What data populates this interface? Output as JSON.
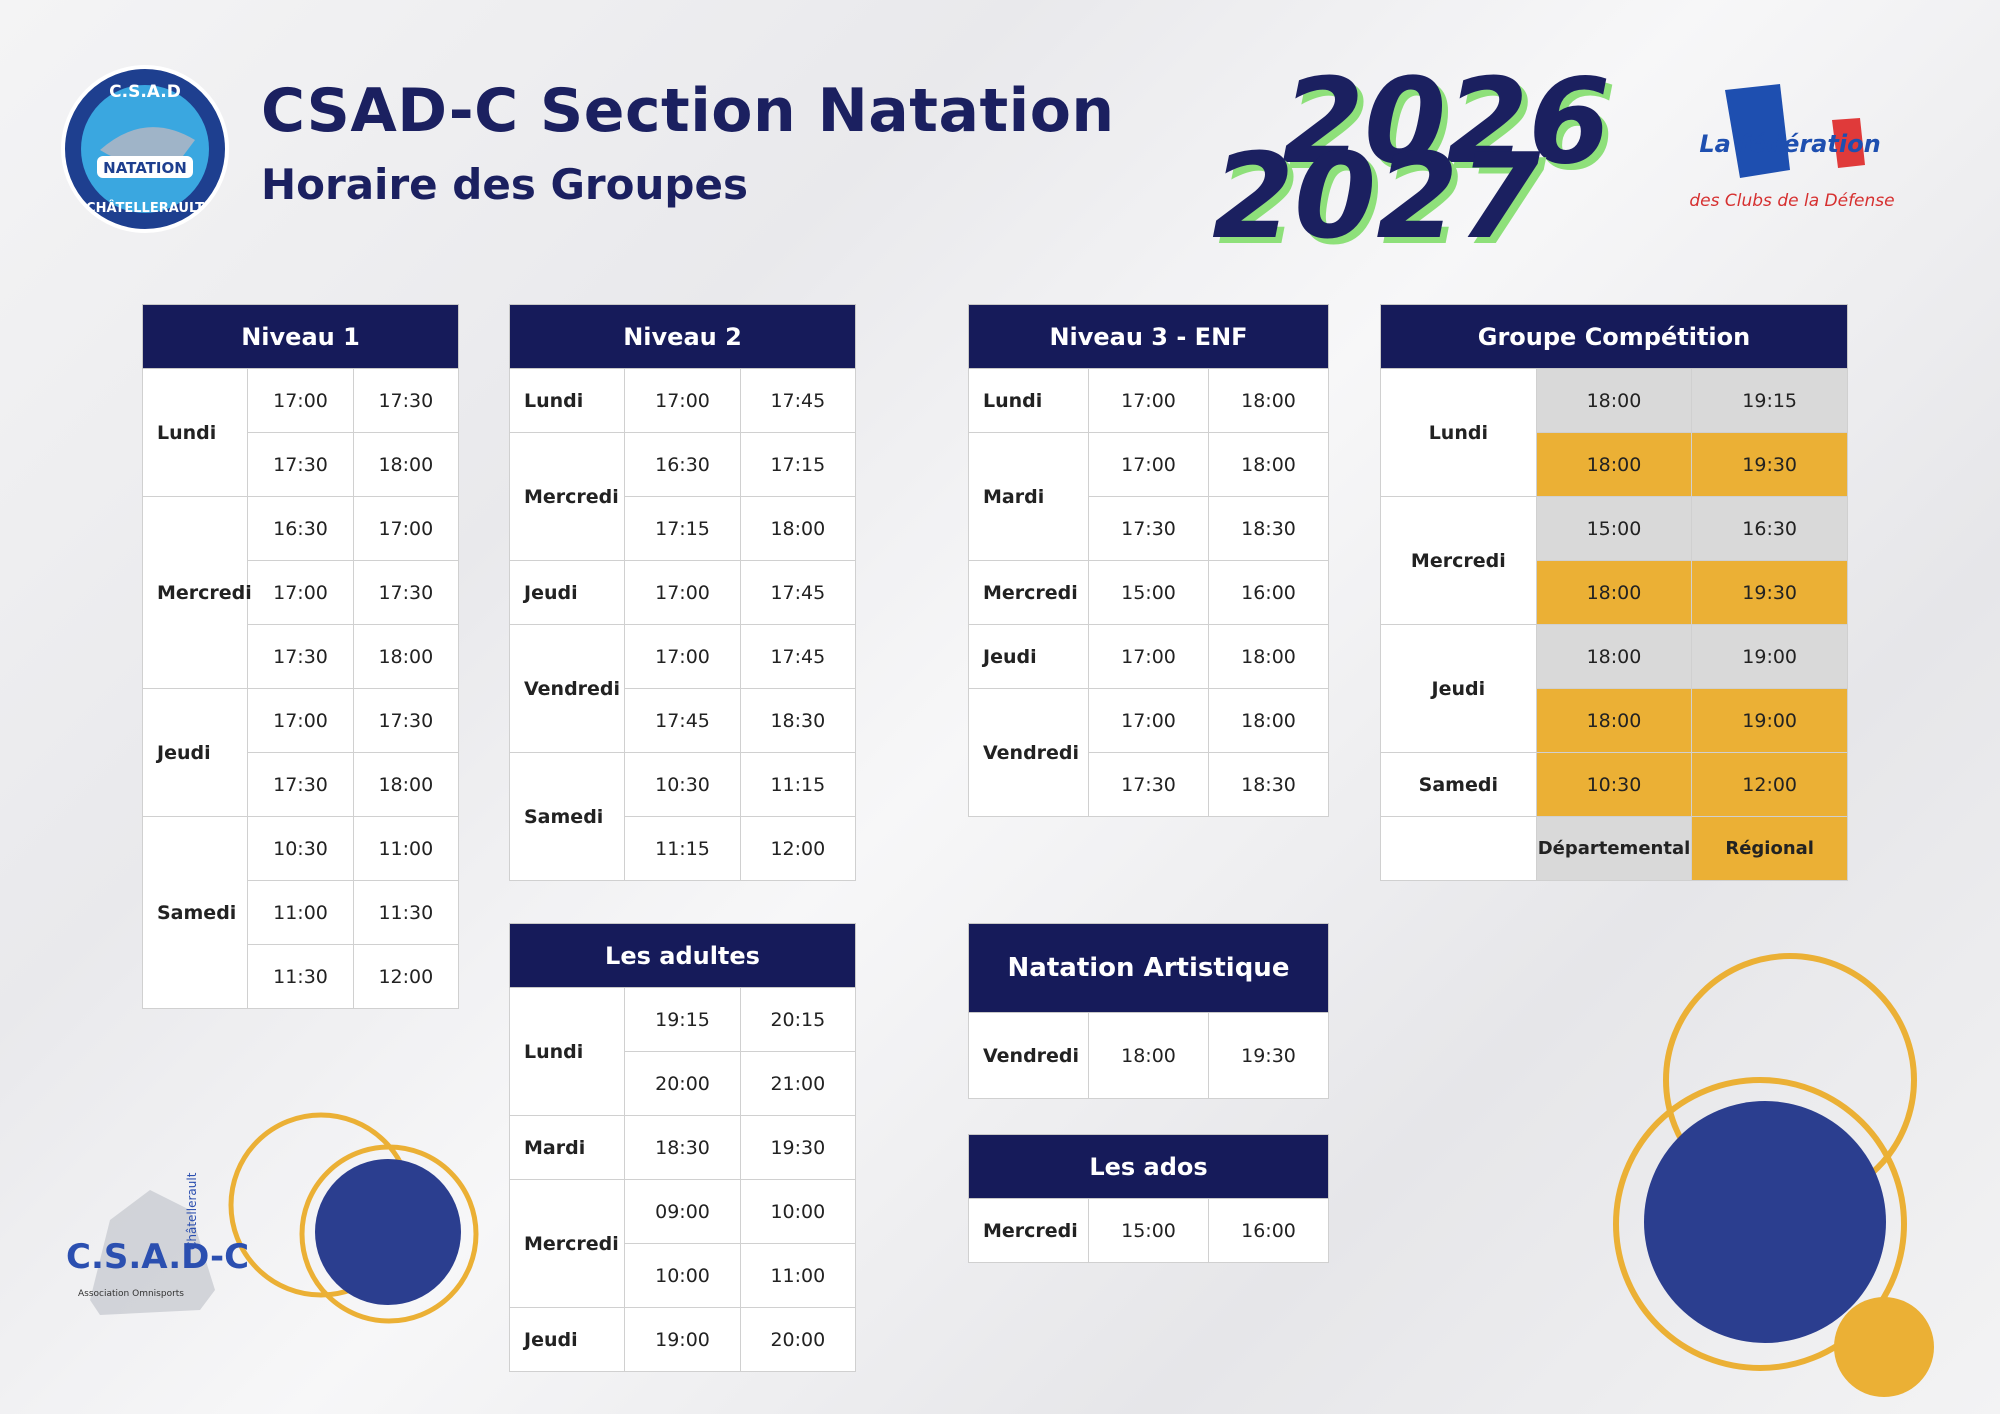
{
  "header": {
    "title": "CSAD-C Section Natation",
    "subtitle": "Horaire des Groupes",
    "years": [
      "2026",
      "2027"
    ]
  },
  "logos": {
    "club": [
      "C.S.A.D",
      "NATATION",
      "CHÂTELLERAULT"
    ],
    "federation": [
      "La fédération",
      "des Clubs de la Défense"
    ],
    "association": [
      "C.S.A.D-C",
      "Châtellerault",
      "Association Omnisports"
    ]
  },
  "tables": [
    {
      "title": "Niveau 1",
      "days": [
        {
          "day": "Lundi",
          "slots": [
            [
              "17:00",
              "17:30"
            ],
            [
              "17:30",
              "18:00"
            ]
          ]
        },
        {
          "day": "Mercredi",
          "slots": [
            [
              "16:30",
              "17:00"
            ],
            [
              "17:00",
              "17:30"
            ],
            [
              "17:30",
              "18:00"
            ]
          ]
        },
        {
          "day": "Jeudi",
          "slots": [
            [
              "17:00",
              "17:30"
            ],
            [
              "17:30",
              "18:00"
            ]
          ]
        },
        {
          "day": "Samedi",
          "slots": [
            [
              "10:30",
              "11:00"
            ],
            [
              "11:00",
              "11:30"
            ],
            [
              "11:30",
              "12:00"
            ]
          ]
        }
      ]
    },
    {
      "title": "Niveau 2",
      "days": [
        {
          "day": "Lundi",
          "slots": [
            [
              "17:00",
              "17:45"
            ]
          ]
        },
        {
          "day": "Mercredi",
          "slots": [
            [
              "16:30",
              "17:15"
            ],
            [
              "17:15",
              "18:00"
            ]
          ]
        },
        {
          "day": "Jeudi",
          "slots": [
            [
              "17:00",
              "17:45"
            ]
          ]
        },
        {
          "day": "Vendredi",
          "slots": [
            [
              "17:00",
              "17:45"
            ],
            [
              "17:45",
              "18:30"
            ]
          ]
        },
        {
          "day": "Samedi",
          "slots": [
            [
              "10:30",
              "11:15"
            ],
            [
              "11:15",
              "12:00"
            ]
          ]
        }
      ]
    },
    {
      "title": "Niveau 3 - ENF",
      "days": [
        {
          "day": "Lundi",
          "slots": [
            [
              "17:00",
              "18:00"
            ]
          ]
        },
        {
          "day": "Mardi",
          "slots": [
            [
              "17:00",
              "18:00"
            ],
            [
              "17:30",
              "18:30"
            ]
          ]
        },
        {
          "day": "Mercredi",
          "slots": [
            [
              "15:00",
              "16:00"
            ]
          ]
        },
        {
          "day": "Jeudi",
          "slots": [
            [
              "17:00",
              "18:00"
            ]
          ]
        },
        {
          "day": "Vendredi",
          "slots": [
            [
              "17:00",
              "18:00"
            ],
            [
              "17:30",
              "18:30"
            ]
          ]
        }
      ]
    },
    {
      "title": "Groupe Compétition",
      "groups": [
        {
          "name": "Départemental",
          "color": "#d9d9d9"
        },
        {
          "name": "Régional",
          "color": "#ebb035"
        }
      ],
      "days": [
        {
          "day": "Lundi",
          "slots": [
            [
              "18:00",
              "19:15"
            ],
            [
              "18:00",
              "19:30"
            ]
          ],
          "slot_groups": [
            0,
            1
          ]
        },
        {
          "day": "Mercredi",
          "slots": [
            [
              "15:00",
              "16:30"
            ],
            [
              "18:00",
              "19:30"
            ]
          ],
          "slot_groups": [
            0,
            1
          ]
        },
        {
          "day": "Jeudi",
          "slots": [
            [
              "18:00",
              "19:00"
            ],
            [
              "18:00",
              "19:00"
            ]
          ],
          "slot_groups": [
            0,
            1
          ]
        },
        {
          "day": "Samedi",
          "slots": [
            [
              "10:30",
              "12:00"
            ]
          ],
          "slot_groups": [
            1
          ]
        }
      ]
    },
    {
      "title": "Les adultes",
      "days": [
        {
          "day": "Lundi",
          "slots": [
            [
              "19:15",
              "20:15"
            ],
            [
              "20:00",
              "21:00"
            ]
          ]
        },
        {
          "day": "Mardi",
          "slots": [
            [
              "18:30",
              "19:30"
            ]
          ]
        },
        {
          "day": "Mercredi",
          "slots": [
            [
              "09:00",
              "10:00"
            ],
            [
              "10:00",
              "11:00"
            ]
          ]
        },
        {
          "day": "Jeudi",
          "slots": [
            [
              "19:00",
              "20:00"
            ]
          ]
        }
      ]
    },
    {
      "title": "Natation Artistique",
      "days": [
        {
          "day": "Vendredi",
          "slots": [
            [
              "18:00",
              "19:30"
            ]
          ]
        }
      ]
    },
    {
      "title": "Les ados",
      "days": [
        {
          "day": "Mercredi",
          "slots": [
            [
              "15:00",
              "16:00"
            ]
          ]
        }
      ]
    }
  ]
}
